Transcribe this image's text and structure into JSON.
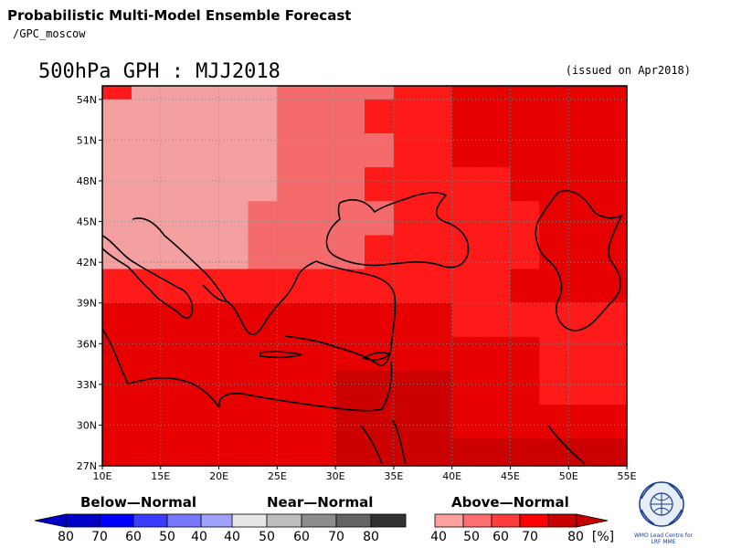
{
  "header": {
    "title": "Probabilistic Multi-Model Ensemble Forecast",
    "source": "/GPC_moscow",
    "map_title": "500hPa GPH : MJJ2018",
    "issued": "(issued on Apr2018)"
  },
  "axes": {
    "lat_labels": [
      "54N",
      "51N",
      "48N",
      "45N",
      "42N",
      "39N",
      "36N",
      "33N",
      "30N",
      "27N"
    ],
    "lat_values": [
      54,
      51,
      48,
      45,
      42,
      39,
      36,
      33,
      30,
      27
    ],
    "lon_labels": [
      "10E",
      "15E",
      "20E",
      "25E",
      "30E",
      "35E",
      "40E",
      "45E",
      "50E",
      "55E"
    ],
    "lon_values": [
      10,
      15,
      20,
      25,
      30,
      35,
      40,
      45,
      50,
      55
    ],
    "lon_range": [
      10,
      55
    ],
    "lat_range": [
      27,
      55
    ]
  },
  "field": {
    "lon_edges": [
      10,
      12.5,
      15,
      17.5,
      20,
      22.5,
      25,
      27.5,
      30,
      32.5,
      35,
      37.5,
      40,
      42.5,
      45,
      47.5,
      50,
      52.5,
      55
    ],
    "lat_rows_top_to_bottom": [
      [
        55,
        54
      ],
      [
        54,
        51.5
      ],
      [
        51.5,
        49
      ],
      [
        49,
        46.5
      ],
      [
        46.5,
        44
      ],
      [
        44,
        41.5
      ],
      [
        41.5,
        39
      ],
      [
        39,
        36.5
      ],
      [
        36.5,
        34
      ],
      [
        34,
        31.5
      ],
      [
        31.5,
        29
      ],
      [
        29,
        27
      ]
    ],
    "categories_grid_note": "values are above-normal probability class index (0=40-50,1=50-60,2=60-70,3=70-80,4=80+)",
    "grid": [
      [
        2,
        0,
        0,
        0,
        0,
        0,
        1,
        1,
        1,
        1,
        2,
        2,
        3,
        3,
        3,
        3,
        3,
        3
      ],
      [
        0,
        0,
        0,
        0,
        0,
        0,
        1,
        1,
        1,
        2,
        2,
        2,
        3,
        3,
        3,
        3,
        3,
        3
      ],
      [
        0,
        0,
        0,
        0,
        0,
        0,
        1,
        1,
        1,
        1,
        2,
        2,
        3,
        3,
        3,
        3,
        3,
        3
      ],
      [
        0,
        0,
        0,
        0,
        0,
        0,
        1,
        1,
        1,
        2,
        2,
        2,
        2,
        2,
        3,
        3,
        3,
        3
      ],
      [
        0,
        0,
        0,
        0,
        0,
        1,
        1,
        1,
        1,
        1,
        2,
        2,
        2,
        2,
        2,
        3,
        3,
        3
      ],
      [
        0,
        0,
        0,
        0,
        0,
        1,
        1,
        1,
        1,
        2,
        2,
        2,
        2,
        2,
        2,
        3,
        3,
        3
      ],
      [
        2,
        2,
        2,
        2,
        2,
        2,
        2,
        2,
        2,
        2,
        2,
        2,
        2,
        2,
        3,
        3,
        3,
        3
      ],
      [
        3,
        3,
        3,
        3,
        3,
        3,
        3,
        3,
        3,
        3,
        3,
        3,
        2,
        2,
        2,
        2,
        2,
        2
      ],
      [
        3,
        3,
        3,
        3,
        3,
        3,
        3,
        3,
        3,
        3,
        3,
        3,
        3,
        3,
        3,
        2,
        2,
        2
      ],
      [
        3,
        3,
        3,
        3,
        3,
        3,
        3,
        3,
        4,
        4,
        4,
        4,
        3,
        3,
        3,
        2,
        2,
        2
      ],
      [
        3,
        3,
        3,
        3,
        3,
        3,
        3,
        3,
        4,
        4,
        4,
        4,
        3,
        3,
        3,
        3,
        3,
        3
      ],
      [
        3,
        3,
        3,
        3,
        3,
        3,
        3,
        3,
        4,
        4,
        4,
        4,
        4,
        4,
        4,
        4,
        4,
        4
      ]
    ]
  },
  "legend": {
    "below": {
      "title": "Below—Normal",
      "ticks": [
        "80",
        "70",
        "60",
        "50",
        "40"
      ],
      "colors": [
        "#0000c8",
        "#0000ff",
        "#3c3cff",
        "#7878ff",
        "#a0a0ff"
      ]
    },
    "near": {
      "title": "Near—Normal",
      "ticks": [
        "40",
        "50",
        "60",
        "70",
        "80"
      ],
      "colors": [
        "#e6e6e6",
        "#bebebe",
        "#8c8c8c",
        "#646464",
        "#323232"
      ]
    },
    "above": {
      "title": "Above—Normal",
      "ticks": [
        "40",
        "50",
        "60",
        "70",
        "80",
        "[%]"
      ],
      "colors": [
        "#ffa0a0",
        "#ff6e6e",
        "#ff3c3c",
        "#ff0000",
        "#c80000"
      ]
    }
  },
  "logo": {
    "line1": "WMO Lead Centre for",
    "line2": "LRF MME"
  },
  "colors": {
    "above": [
      "#f5a0a0",
      "#f56b6b",
      "#ff1a1a",
      "#e60000",
      "#cc0000"
    ]
  }
}
